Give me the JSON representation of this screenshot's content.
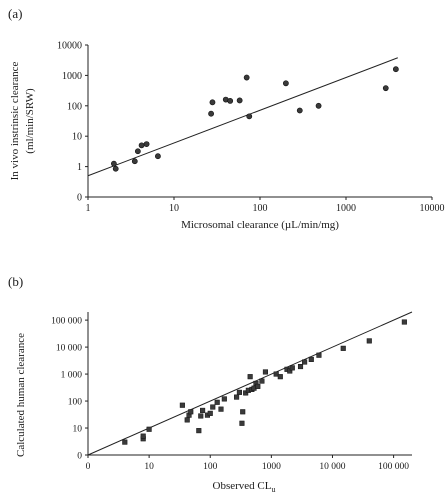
{
  "chart_data": [
    {
      "panel_label": "(a)",
      "type": "scatter",
      "xlabel": "Microsomal clearance (µL/min/mg)",
      "ylabel_lines": [
        "In vivo instrinsic clearance",
        "(ml/min/SRW)"
      ],
      "x_scale": "log",
      "y_scale": "log",
      "xlim": [
        1,
        10000
      ],
      "ylim": [
        0.1,
        10000
      ],
      "x_ticks": [
        {
          "value": 1,
          "label": "1"
        },
        {
          "value": 10,
          "label": "10"
        },
        {
          "value": 100,
          "label": "100"
        },
        {
          "value": 1000,
          "label": "1000"
        },
        {
          "value": 10000,
          "label": "10000"
        }
      ],
      "y_ticks": [
        {
          "value": 0.1,
          "label": "0"
        },
        {
          "value": 1,
          "label": "1"
        },
        {
          "value": 10,
          "label": "10"
        },
        {
          "value": 100,
          "label": "100"
        },
        {
          "value": 1000,
          "label": "1000"
        },
        {
          "value": 10000,
          "label": "10000"
        }
      ],
      "fit_line": [
        [
          1,
          0.5
        ],
        [
          4000,
          3800
        ]
      ],
      "marker": "circle",
      "points": [
        [
          2.0,
          1.25
        ],
        [
          2.1,
          0.85
        ],
        [
          3.5,
          1.5
        ],
        [
          3.8,
          3.2
        ],
        [
          4.2,
          5.0
        ],
        [
          4.8,
          5.5
        ],
        [
          6.5,
          2.2
        ],
        [
          27,
          55
        ],
        [
          28,
          130
        ],
        [
          40,
          160
        ],
        [
          45,
          145
        ],
        [
          58,
          150
        ],
        [
          70,
          850
        ],
        [
          75,
          45
        ],
        [
          200,
          550
        ],
        [
          290,
          70
        ],
        [
          480,
          100
        ],
        [
          2900,
          380
        ],
        [
          3800,
          1600
        ]
      ]
    },
    {
      "panel_label": "(b)",
      "type": "scatter",
      "xlabel": "Observed CL",
      "xlabel_sub": "u",
      "ylabel": "Calculated human clearance",
      "x_scale": "log",
      "y_scale": "log",
      "xlim": [
        1,
        200000
      ],
      "ylim": [
        1,
        200000
      ],
      "x_ticks": [
        {
          "value": 1,
          "label": "0"
        },
        {
          "value": 10,
          "label": "10"
        },
        {
          "value": 100,
          "label": "100"
        },
        {
          "value": 1000,
          "label": "1000"
        },
        {
          "value": 10000,
          "label": "10 000"
        },
        {
          "value": 100000,
          "label": "100 000"
        }
      ],
      "y_ticks": [
        {
          "value": 1,
          "label": "0"
        },
        {
          "value": 10,
          "label": "10"
        },
        {
          "value": 100,
          "label": "100"
        },
        {
          "value": 1000,
          "label": "1 000"
        },
        {
          "value": 10000,
          "label": "10 000"
        },
        {
          "value": 100000,
          "label": "100 000"
        }
      ],
      "fit_line": [
        [
          1,
          1
        ],
        [
          200000,
          200000
        ]
      ],
      "marker": "square",
      "points": [
        [
          4,
          3
        ],
        [
          8,
          4
        ],
        [
          8,
          5
        ],
        [
          10,
          9
        ],
        [
          35,
          70
        ],
        [
          42,
          20
        ],
        [
          45,
          30
        ],
        [
          48,
          40
        ],
        [
          65,
          8
        ],
        [
          70,
          28
        ],
        [
          75,
          45
        ],
        [
          90,
          30
        ],
        [
          100,
          35
        ],
        [
          110,
          60
        ],
        [
          130,
          90
        ],
        [
          150,
          50
        ],
        [
          170,
          120
        ],
        [
          270,
          140
        ],
        [
          300,
          210
        ],
        [
          330,
          15
        ],
        [
          340,
          40
        ],
        [
          380,
          200
        ],
        [
          420,
          250
        ],
        [
          450,
          800
        ],
        [
          480,
          270
        ],
        [
          520,
          300
        ],
        [
          560,
          450
        ],
        [
          600,
          350
        ],
        [
          700,
          550
        ],
        [
          800,
          1200
        ],
        [
          1200,
          1000
        ],
        [
          1400,
          800
        ],
        [
          1800,
          1500
        ],
        [
          2000,
          1300
        ],
        [
          2200,
          1700
        ],
        [
          3000,
          1900
        ],
        [
          3500,
          2800
        ],
        [
          4500,
          3500
        ],
        [
          6000,
          5000
        ],
        [
          15000,
          9000
        ],
        [
          40000,
          17000
        ],
        [
          150000,
          85000
        ]
      ]
    }
  ]
}
